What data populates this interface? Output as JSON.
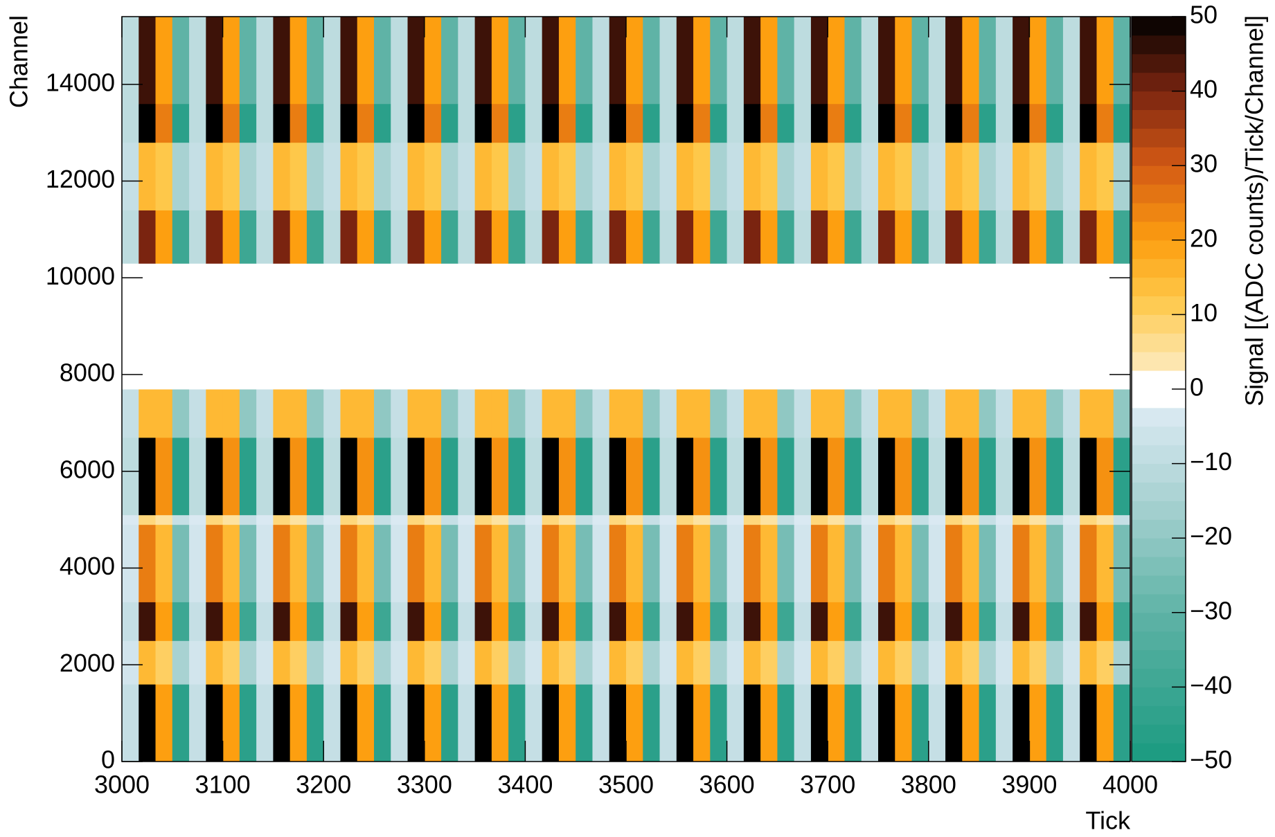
{
  "chart_data": {
    "type": "heatmap",
    "x_label": "Tick",
    "y_label": "Channel",
    "colorbar_label": "Signal [(ADC counts)/Tick/Channel]",
    "xlim": [
      3000,
      4000
    ],
    "xticks": [
      3000,
      3100,
      3200,
      3300,
      3400,
      3500,
      3600,
      3700,
      3800,
      3900,
      4000
    ],
    "ylim": [
      0,
      15400
    ],
    "yticks": [
      0,
      2000,
      4000,
      6000,
      8000,
      10000,
      12000,
      14000
    ],
    "ybins": [
      0,
      1600,
      2500,
      3300,
      4900,
      5100,
      6700,
      7700,
      10300,
      11400,
      12800,
      13600,
      15400
    ],
    "zlim": [
      -50,
      50
    ],
    "zticks": [
      {
        "value": -50,
        "label": "−50"
      },
      {
        "value": -40,
        "label": "−40"
      },
      {
        "value": -30,
        "label": "−30"
      },
      {
        "value": -20,
        "label": "−20"
      },
      {
        "value": -10,
        "label": "−10"
      },
      0,
      10,
      20,
      30,
      40,
      50
    ],
    "colorscale": [
      [
        -50,
        "#1a9a80"
      ],
      [
        -30,
        "#5fb3a6"
      ],
      [
        -15,
        "#a8d2d2"
      ],
      [
        -3,
        "#dae9f2"
      ],
      [
        -2.5,
        "#ffffff"
      ],
      [
        2.5,
        "#ffffff"
      ],
      [
        3,
        "#fde9b8"
      ],
      [
        12,
        "#fec84a"
      ],
      [
        20,
        "#fd9f10"
      ],
      [
        30,
        "#d45a14"
      ],
      [
        40,
        "#7a2410"
      ],
      [
        50,
        "#000000"
      ]
    ],
    "z": [
      [
        -8,
        50,
        20,
        -45,
        -8,
        50,
        20,
        -45,
        -8,
        50,
        20,
        -45,
        -8,
        50,
        20,
        -45,
        -8,
        50,
        20,
        -45,
        -8,
        50,
        20,
        -45,
        -8,
        50,
        20,
        -45,
        -8,
        50,
        20,
        -45,
        -8,
        50,
        20,
        -45,
        -8,
        50,
        20,
        -45,
        -8,
        50,
        20,
        -45,
        -8,
        50,
        20,
        -45,
        -8,
        50,
        20,
        -45,
        -8,
        50,
        20,
        -45,
        -8,
        50,
        20,
        -45
      ],
      [
        -5,
        15,
        10,
        -15,
        -5,
        15,
        10,
        -15,
        -5,
        15,
        10,
        -15,
        -5,
        15,
        10,
        -15,
        -5,
        15,
        10,
        -15,
        -5,
        15,
        10,
        -15,
        -5,
        15,
        10,
        -15,
        -5,
        15,
        10,
        -15,
        -5,
        15,
        10,
        -15,
        -5,
        15,
        10,
        -15,
        -5,
        15,
        10,
        -15,
        -5,
        15,
        10,
        -15,
        -5,
        15,
        10,
        -15,
        -5,
        15,
        10,
        -15,
        -5,
        15,
        10,
        -15
      ],
      [
        -8,
        45,
        20,
        -40,
        -8,
        45,
        20,
        -40,
        -8,
        45,
        20,
        -40,
        -8,
        45,
        20,
        -40,
        -8,
        45,
        20,
        -40,
        -8,
        45,
        20,
        -40,
        -8,
        45,
        20,
        -40,
        -8,
        45,
        20,
        -40,
        -8,
        45,
        20,
        -40,
        -8,
        45,
        20,
        -40,
        -8,
        45,
        20,
        -40,
        -8,
        45,
        20,
        -40,
        -8,
        45,
        20,
        -40,
        -8,
        45,
        20,
        -40,
        -8,
        45,
        20,
        -40
      ],
      [
        -5,
        25,
        15,
        -25,
        -5,
        25,
        15,
        -25,
        -5,
        25,
        15,
        -25,
        -5,
        25,
        15,
        -25,
        -5,
        25,
        15,
        -25,
        -5,
        25,
        15,
        -25,
        -5,
        25,
        15,
        -25,
        -5,
        25,
        15,
        -25,
        -5,
        25,
        15,
        -25,
        -5,
        25,
        15,
        -25,
        -5,
        25,
        15,
        -25,
        -5,
        25,
        15,
        -25,
        -5,
        25,
        15,
        -25,
        -5,
        25,
        15,
        -25,
        -5,
        25,
        15,
        -25
      ],
      [
        -3,
        8,
        5,
        -8,
        -3,
        8,
        5,
        -8,
        -3,
        8,
        5,
        -8,
        -3,
        8,
        5,
        -8,
        -3,
        8,
        5,
        -8,
        -3,
        8,
        5,
        -8,
        -3,
        8,
        5,
        -8,
        -3,
        8,
        5,
        -8,
        -3,
        8,
        5,
        -8,
        -3,
        8,
        5,
        -8,
        -3,
        8,
        5,
        -8,
        -3,
        8,
        5,
        -8,
        -3,
        8,
        5,
        -8,
        -3,
        8,
        5,
        -8,
        -3,
        8,
        5,
        -8
      ],
      [
        -10,
        50,
        22,
        -45,
        -10,
        50,
        22,
        -45,
        -10,
        50,
        22,
        -45,
        -10,
        50,
        22,
        -45,
        -10,
        50,
        22,
        -45,
        -10,
        50,
        22,
        -45,
        -10,
        50,
        22,
        -45,
        -10,
        50,
        22,
        -45,
        -10,
        50,
        22,
        -45,
        -10,
        50,
        22,
        -45,
        -10,
        50,
        22,
        -45,
        -10,
        50,
        22,
        -45,
        -10,
        50,
        22,
        -45,
        -10,
        50,
        22,
        -45,
        -10,
        50,
        22,
        -45
      ],
      [
        -8,
        15,
        15,
        -20,
        -8,
        15,
        15,
        -20,
        -8,
        15,
        15,
        -20,
        -8,
        15,
        15,
        -20,
        -8,
        15,
        15,
        -20,
        -8,
        15,
        15,
        -20,
        -8,
        15,
        15,
        -20,
        -8,
        15,
        15,
        -20,
        -8,
        15,
        15,
        -20,
        -8,
        15,
        15,
        -20,
        -8,
        15,
        15,
        -20,
        -8,
        15,
        15,
        -20,
        -8,
        15,
        15,
        -20,
        -8,
        15,
        15,
        -20,
        -8,
        15,
        15,
        -20
      ],
      [
        0,
        0,
        0,
        0,
        0,
        0,
        0,
        0,
        0,
        0,
        0,
        0,
        0,
        0,
        0,
        0,
        0,
        0,
        0,
        0,
        0,
        0,
        0,
        0,
        0,
        0,
        0,
        0,
        0,
        0,
        0,
        0,
        0,
        0,
        0,
        0,
        0,
        0,
        0,
        0,
        0,
        0,
        0,
        0,
        0,
        0,
        0,
        0,
        0,
        0,
        0,
        0,
        0,
        0,
        0,
        0,
        0,
        0,
        0,
        0
      ],
      [
        -10,
        40,
        20,
        -40,
        -10,
        40,
        20,
        -40,
        -10,
        40,
        20,
        -40,
        -10,
        40,
        20,
        -40,
        -10,
        40,
        20,
        -40,
        -10,
        40,
        20,
        -40,
        -10,
        40,
        20,
        -40,
        -10,
        40,
        20,
        -40,
        -10,
        40,
        20,
        -40,
        -10,
        40,
        20,
        -40,
        -10,
        40,
        20,
        -40,
        -10,
        40,
        20,
        -40,
        -10,
        40,
        20,
        -40,
        -10,
        40,
        20,
        -40,
        -10,
        40,
        20,
        -40
      ],
      [
        -8,
        15,
        12,
        -15,
        -8,
        15,
        12,
        -15,
        -8,
        15,
        12,
        -15,
        -8,
        15,
        12,
        -15,
        -8,
        15,
        12,
        -15,
        -8,
        15,
        12,
        -15,
        -8,
        15,
        12,
        -15,
        -8,
        15,
        12,
        -15,
        -8,
        15,
        12,
        -15,
        -8,
        15,
        12,
        -15,
        -8,
        15,
        12,
        -15,
        -8,
        15,
        12,
        -15,
        -8,
        15,
        12,
        -15,
        -8,
        15,
        12,
        -15,
        -8,
        15,
        12,
        -15
      ],
      [
        -10,
        50,
        25,
        -45,
        -10,
        50,
        25,
        -45,
        -10,
        50,
        25,
        -45,
        -10,
        50,
        25,
        -45,
        -10,
        50,
        25,
        -45,
        -10,
        50,
        25,
        -45,
        -10,
        50,
        25,
        -45,
        -10,
        50,
        25,
        -45,
        -10,
        50,
        25,
        -45,
        -10,
        50,
        25,
        -45,
        -10,
        50,
        25,
        -45,
        -10,
        50,
        25,
        -45,
        -10,
        50,
        25,
        -45,
        -10,
        50,
        25,
        -45,
        -10,
        50,
        25,
        -45
      ],
      [
        -10,
        45,
        20,
        -30,
        -10,
        45,
        20,
        -30,
        -10,
        45,
        20,
        -30,
        -10,
        45,
        20,
        -30,
        -10,
        45,
        20,
        -30,
        -10,
        45,
        20,
        -30,
        -10,
        45,
        20,
        -30,
        -10,
        45,
        20,
        -30,
        -10,
        45,
        20,
        -30,
        -10,
        45,
        20,
        -30,
        -10,
        45,
        20,
        -30,
        -10,
        45,
        20,
        -30,
        -10,
        45,
        20,
        -30,
        -10,
        45,
        20,
        -30,
        -10,
        45,
        20,
        -30
      ]
    ]
  }
}
